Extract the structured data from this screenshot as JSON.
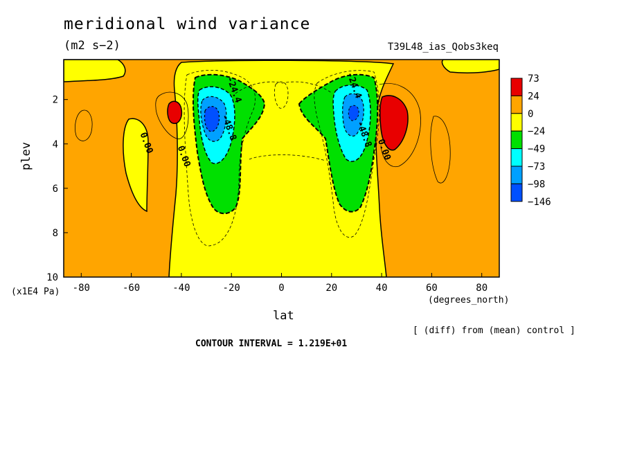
{
  "header": {
    "title": "meridional wind variance",
    "units": "(m2 s−2)",
    "run_id": "T39L48_ias_Qobs3keq"
  },
  "footer": {
    "contour_interval": "CONTOUR INTERVAL = 1.219E+01",
    "note": "[ (diff) from (mean) control ]"
  },
  "chart_data": {
    "type": "contour",
    "xlabel": "lat",
    "x_unit": "(degrees_north)",
    "ylabel": "plev",
    "y_unit": "(x1E4 Pa)",
    "xlim": [
      -87,
      87
    ],
    "ylim": [
      10,
      0.2
    ],
    "y_inverted": true,
    "x_ticks": [
      "-80",
      "-60",
      "-40",
      "-20",
      "0",
      "20",
      "40",
      "60",
      "80"
    ],
    "x_tick_values": [
      -80,
      -60,
      -40,
      -20,
      0,
      20,
      40,
      60,
      80
    ],
    "y_ticks": [
      "2",
      "4",
      "6",
      "8",
      "10"
    ],
    "y_tick_values": [
      2,
      4,
      6,
      8,
      10
    ],
    "contour_interval": 12.19,
    "contour_labels": [
      {
        "text": "0.00",
        "lat": -55,
        "plev": 4.0
      },
      {
        "text": "0.00",
        "lat": -40,
        "plev": 4.6
      },
      {
        "text": "-24.4",
        "lat": -20,
        "plev": 1.6
      },
      {
        "text": "-48.8",
        "lat": -22,
        "plev": 3.3
      },
      {
        "text": "-24.4",
        "lat": 28,
        "plev": 1.4
      },
      {
        "text": "-48.8",
        "lat": 32,
        "plev": 3.6
      },
      {
        "text": "0.00",
        "lat": 40,
        "plev": 4.3
      }
    ],
    "colorbar": {
      "levels": [
        "73",
        "24",
        "0",
        "−24",
        "−49",
        "−73",
        "−98",
        "−146"
      ],
      "colors": [
        "#e80000",
        "#ffa500",
        "#ffff00",
        "#00e000",
        "#00ffff",
        "#00a0ff",
        "#0050ff"
      ]
    },
    "features": [
      {
        "name": "southern minimum",
        "lat": -30,
        "plev": 2.6,
        "min_band": "-98 to -146"
      },
      {
        "name": "northern minimum",
        "lat": 29,
        "plev": 2.6,
        "min_band": "-73 to -98"
      },
      {
        "name": "southern maximum",
        "lat": -45,
        "plev": 2.4,
        "max_band": "24 to 73"
      },
      {
        "name": "northern maximum",
        "lat": 44,
        "plev": 2.7,
        "max_band": "24 to 73"
      }
    ]
  }
}
